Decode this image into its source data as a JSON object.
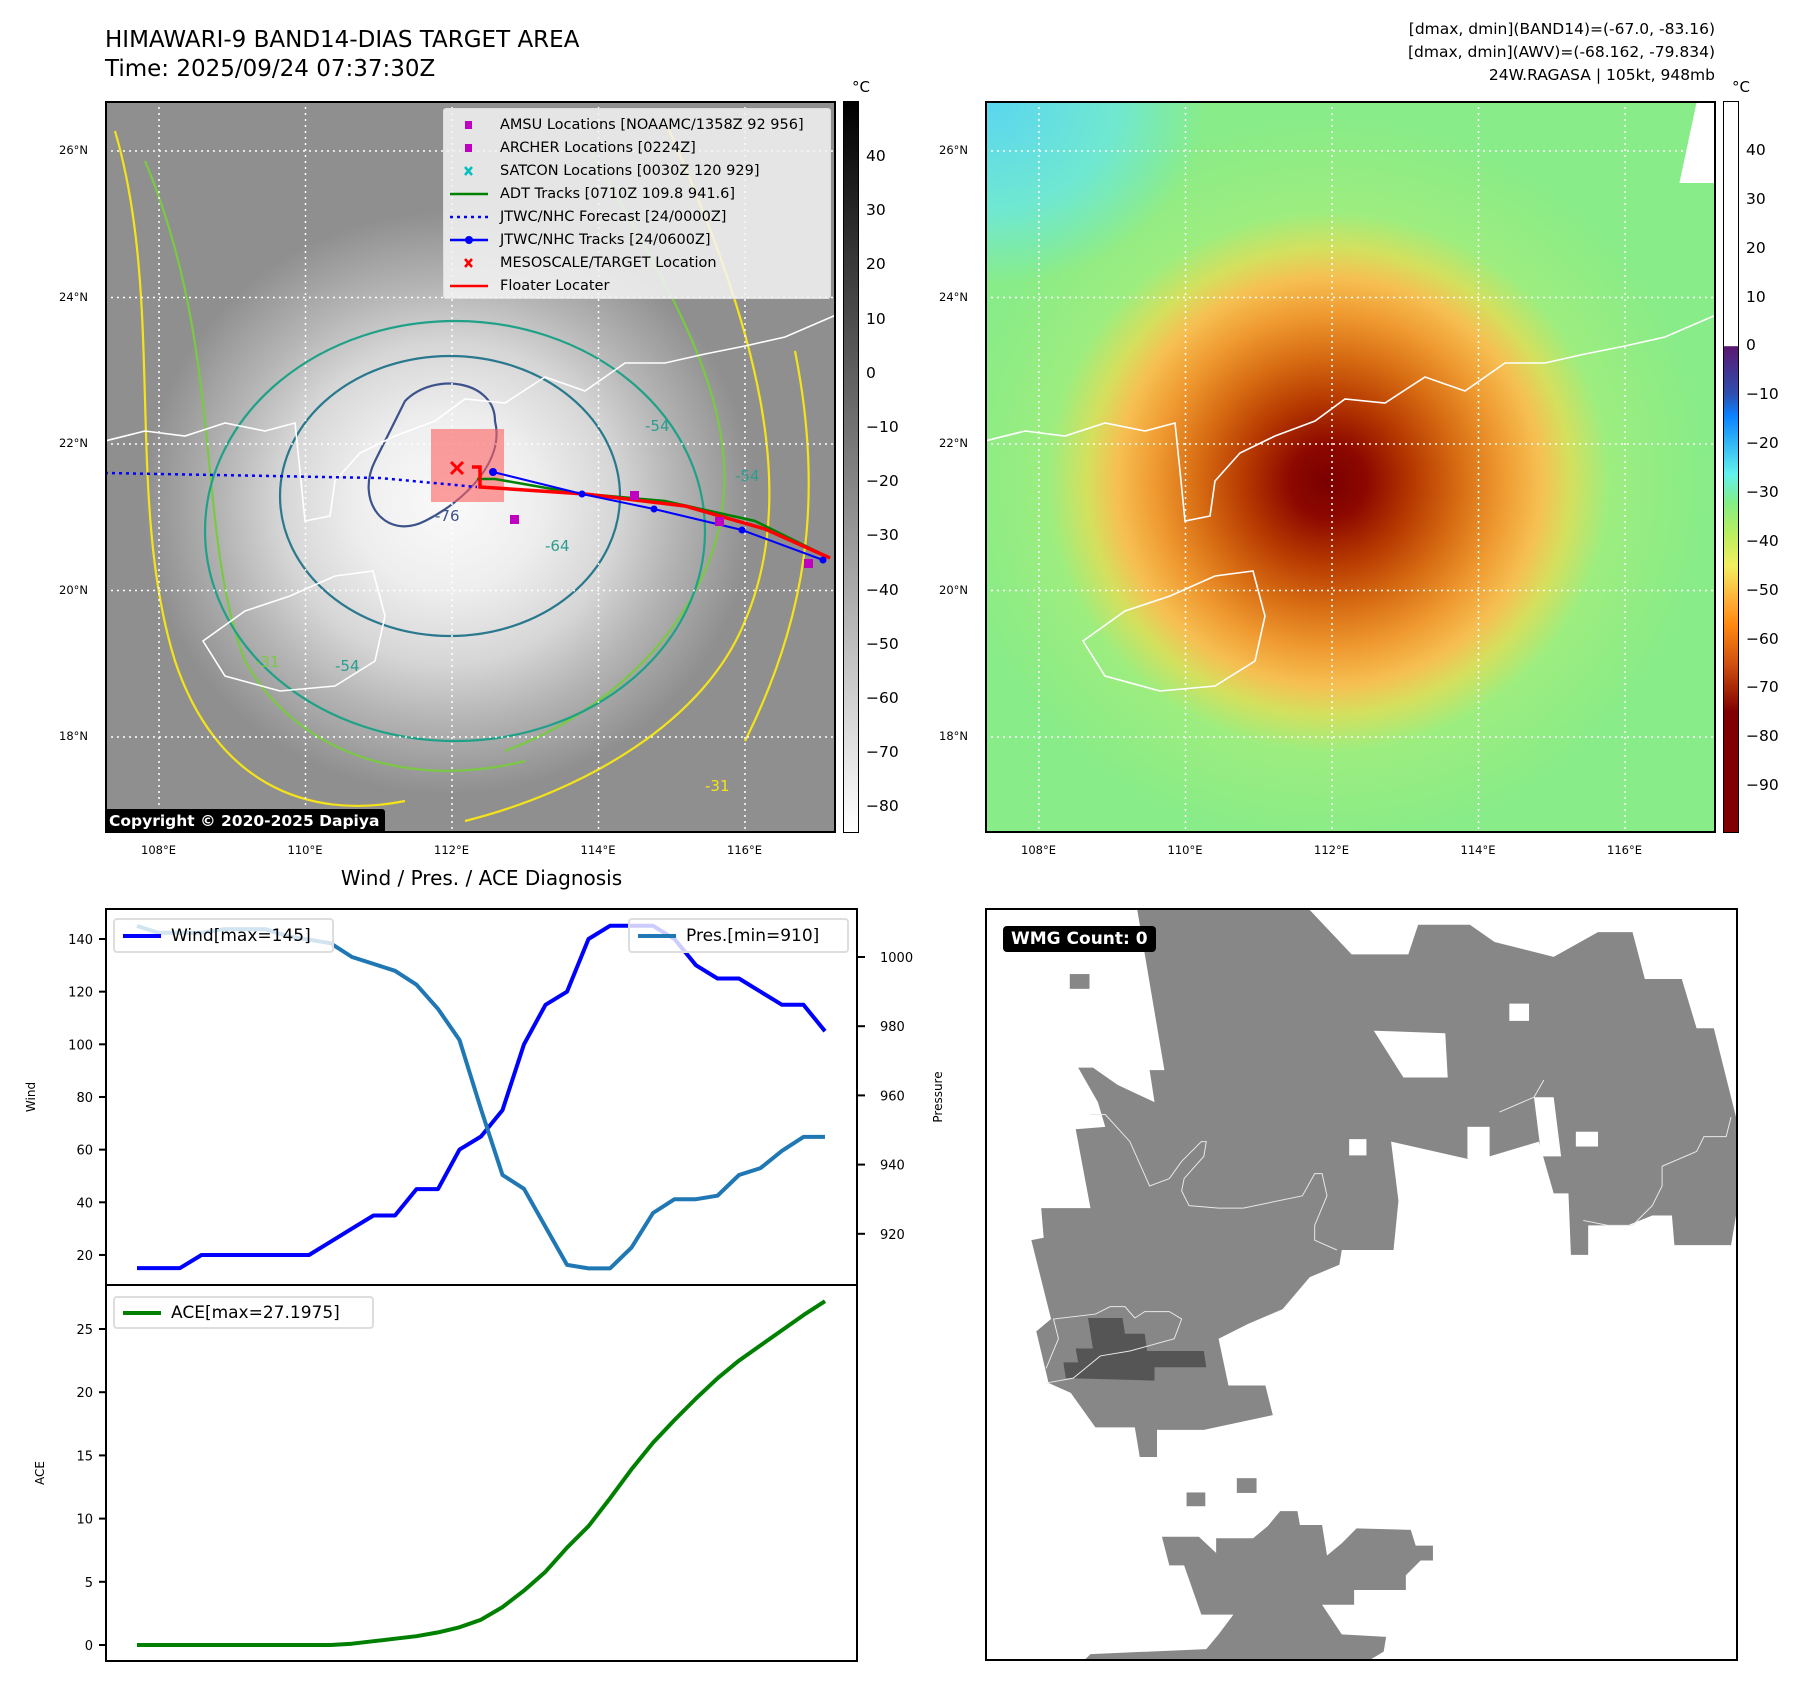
{
  "header": {
    "title": "HIMAWARI-9 BAND14-DIAS TARGET AREA",
    "time": "Time: 2025/09/24 07:37:30Z",
    "info_band14": "[dmax, dmin](BAND14)=(-67.0, -83.16)",
    "info_awv": "[dmax, dmin](AWV)=(-68.162, -79.834)",
    "info_storm": "24W.RAGASA | 105kt, 948mb"
  },
  "map": {
    "lat_labels": [
      "26°N",
      "24°N",
      "22°N",
      "20°N",
      "18°N"
    ],
    "lon_labels": [
      "108°E",
      "110°E",
      "112°E",
      "114°E",
      "116°E"
    ],
    "contour_labels": [
      "-31",
      "-54",
      "-54",
      "-64",
      "-76",
      "-54",
      "-31"
    ],
    "copyright": "Copyright © 2020-2025 Dapiya",
    "legend": [
      {
        "label": "AMSU Locations [NOAAMC/1358Z 92 956]",
        "color": "#c000c0",
        "icon": "square-marker"
      },
      {
        "label": "ARCHER Locations [0224Z]",
        "color": "#c000c0",
        "icon": "square-marker"
      },
      {
        "label": "SATCON Locations [0030Z 120 929]",
        "color": "#00c0c0",
        "icon": "x-marker"
      },
      {
        "label": "ADT Tracks [0710Z 109.8 941.6]",
        "color": "#008000",
        "icon": "line"
      },
      {
        "label": "JTWC/NHC Forecast [24/0000Z]",
        "color": "#0000ff",
        "icon": "dotted-line"
      },
      {
        "label": "JTWC/NHC Tracks [24/0600Z]",
        "color": "#0000ff",
        "icon": "line-dot"
      },
      {
        "label": "MESOSCALE/TARGET Location",
        "color": "#ff0000",
        "icon": "x-marker"
      },
      {
        "label": "Floater Locater",
        "color": "#ff0000",
        "icon": "line"
      }
    ]
  },
  "colorbar1": {
    "unit": "°C",
    "ticks": [
      "40",
      "30",
      "20",
      "10",
      "0",
      "−10",
      "−20",
      "−30",
      "−40",
      "−50",
      "−60",
      "−70",
      "−80"
    ],
    "values": [
      40,
      30,
      20,
      10,
      0,
      -10,
      -20,
      -30,
      -40,
      -50,
      -60,
      -70,
      -80
    ]
  },
  "colorbar2": {
    "unit": "°C",
    "ticks": [
      "40",
      "30",
      "20",
      "10",
      "0",
      "−10",
      "−20",
      "−30",
      "−40",
      "−50",
      "−60",
      "−70",
      "−80",
      "−90"
    ],
    "values": [
      40,
      30,
      20,
      10,
      0,
      -10,
      -20,
      -30,
      -40,
      -50,
      -60,
      -70,
      -80,
      -90
    ]
  },
  "wmg": {
    "badge": "WMG Count: 0"
  },
  "chart_data": [
    {
      "type": "line",
      "title": "Wind / Pres. / ACE Diagnosis",
      "x": [
        0,
        1,
        2,
        3,
        4,
        5,
        6,
        7,
        8,
        9,
        10,
        11,
        12,
        13,
        14,
        15,
        16,
        17,
        18,
        19,
        20,
        21,
        22,
        23,
        24,
        25,
        26,
        27,
        28,
        29,
        30,
        31,
        32
      ],
      "ylabel": "Wind",
      "y2label": "Pressure",
      "ylim": [
        8,
        152
      ],
      "y2lim": [
        905,
        1012
      ],
      "yticks": [
        "20",
        "40",
        "60",
        "80",
        "100",
        "120",
        "140"
      ],
      "ytick_values": [
        20,
        40,
        60,
        80,
        100,
        120,
        140
      ],
      "y2ticks": [
        "920",
        "940",
        "960",
        "980",
        "1000"
      ],
      "y2tick_values": [
        920,
        940,
        960,
        980,
        1000
      ],
      "series": [
        {
          "name": "Wind[max=145]",
          "axis": "left",
          "color": "#0000ff",
          "values": [
            15,
            15,
            15,
            20,
            20,
            20,
            20,
            20,
            20,
            25,
            30,
            35,
            35,
            45,
            45,
            60,
            65,
            75,
            100,
            115,
            120,
            140,
            145,
            145,
            145,
            140,
            130,
            125,
            125,
            120,
            115,
            115,
            105
          ]
        },
        {
          "name": "Pres.[min=910]",
          "axis": "right",
          "color": "#1f77b4",
          "values": [
            1009,
            1007,
            1007,
            1007,
            1008,
            1008,
            1008,
            1006,
            1005,
            1004,
            1000,
            998,
            996,
            992,
            985,
            976,
            956,
            937,
            933,
            922,
            911,
            910,
            910,
            916,
            926,
            930,
            930,
            931,
            937,
            939,
            944,
            948,
            948
          ]
        }
      ],
      "legend": [
        "top-left",
        "top-right"
      ]
    },
    {
      "type": "line",
      "x": [
        0,
        1,
        2,
        3,
        4,
        5,
        6,
        7,
        8,
        9,
        10,
        11,
        12,
        13,
        14,
        15,
        16,
        17,
        18,
        19,
        20,
        21,
        22,
        23,
        24,
        25,
        26,
        27,
        28,
        29,
        30,
        31,
        32
      ],
      "ylabel": "ACE",
      "ylim": [
        -1.3,
        27.8
      ],
      "yticks": [
        "0",
        "5",
        "10",
        "15",
        "20",
        "25"
      ],
      "ytick_values": [
        0,
        5,
        10,
        15,
        20,
        25
      ],
      "series": [
        {
          "name": "ACE[max=27.1975]",
          "color": "#008000",
          "values": [
            0,
            0,
            0,
            0,
            0,
            0,
            0,
            0,
            0,
            0,
            0.1,
            0.3,
            0.5,
            0.7,
            1.0,
            1.4,
            2.0,
            3.0,
            4.3,
            5.8,
            7.7,
            9.4,
            11.6,
            13.9,
            16.0,
            17.8,
            19.5,
            21.1,
            22.5,
            23.7,
            24.9,
            26.1,
            27.2
          ]
        }
      ],
      "legend": "top-left"
    }
  ]
}
